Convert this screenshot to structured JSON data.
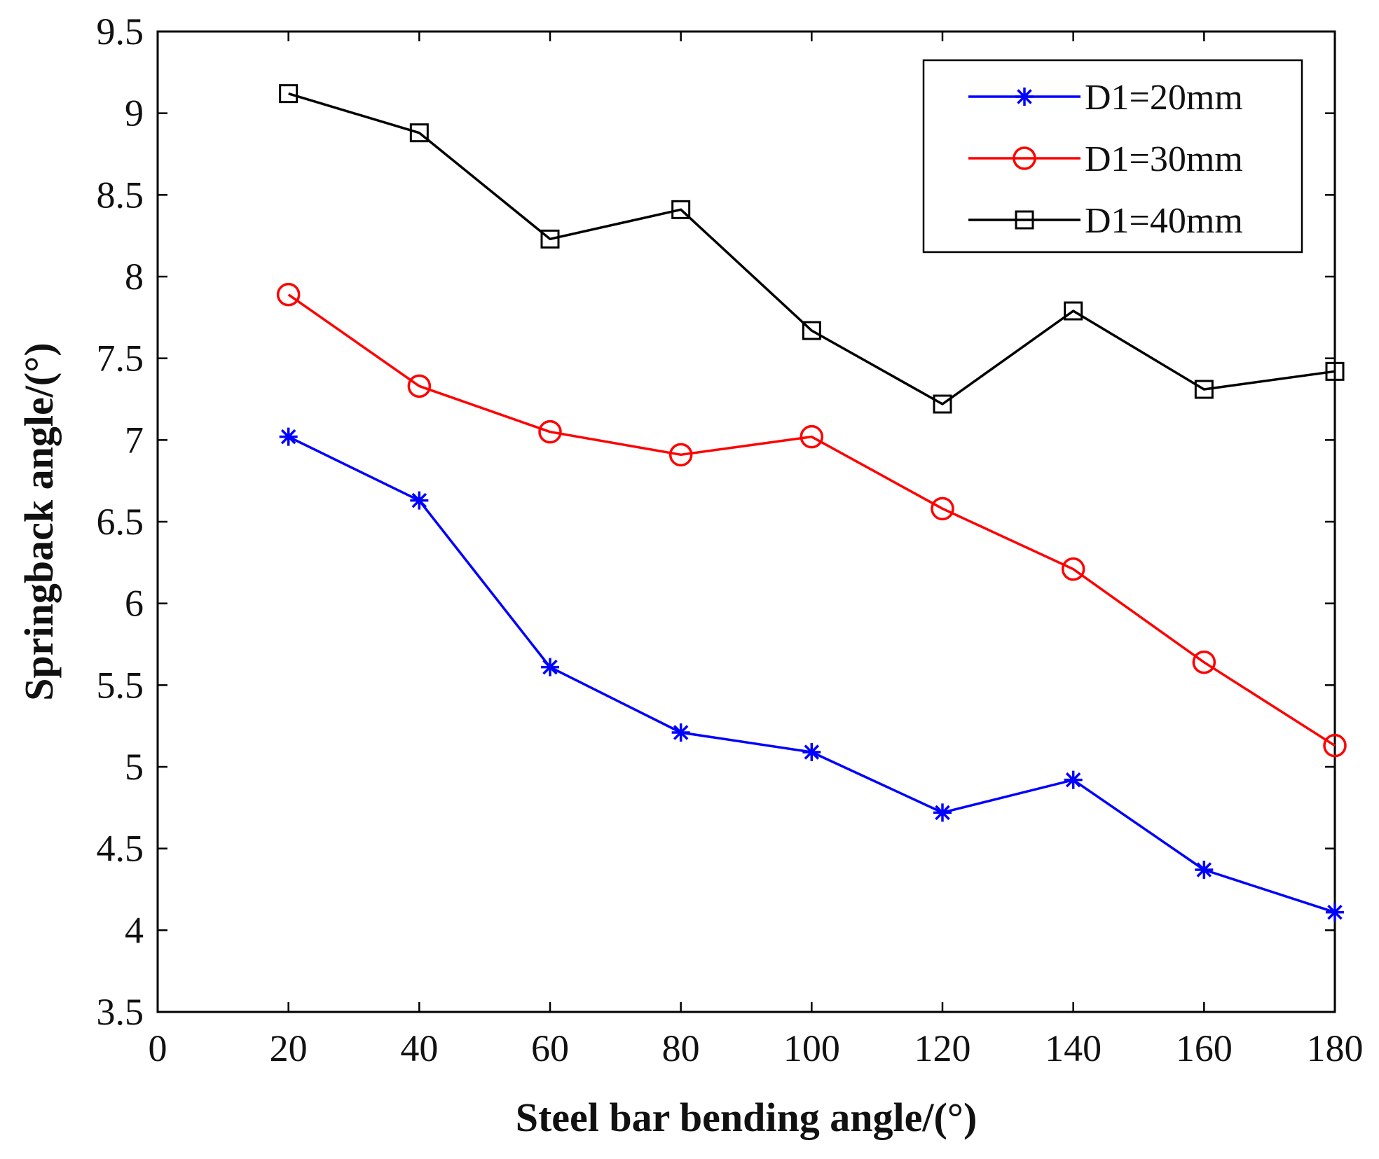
{
  "chart_data": {
    "type": "line",
    "title": "",
    "xlabel": "Steel bar bending angle/(°)",
    "ylabel": "Springback angle/(°)",
    "xlim": [
      0,
      180
    ],
    "ylim": [
      3.5,
      9.5
    ],
    "xticks": [
      "0",
      "20",
      "40",
      "60",
      "80",
      "100",
      "120",
      "140",
      "160",
      "180"
    ],
    "yticks": [
      "3.5",
      "4",
      "4.5",
      "5",
      "5.5",
      "6",
      "6.5",
      "7",
      "7.5",
      "8",
      "8.5",
      "9",
      "9.5"
    ],
    "grid": false,
    "legend_position": "top-right",
    "x": [
      20,
      40,
      60,
      80,
      100,
      120,
      140,
      160,
      180
    ],
    "series": [
      {
        "name": "D1=20mm",
        "color": "#0000ff",
        "marker": "asterisk",
        "values": [
          7.02,
          6.63,
          5.61,
          5.21,
          5.09,
          4.72,
          4.92,
          4.37,
          4.11
        ]
      },
      {
        "name": "D1=30mm",
        "color": "#ff0000",
        "marker": "circle",
        "values": [
          7.89,
          7.33,
          7.05,
          6.91,
          7.02,
          6.58,
          6.21,
          5.64,
          5.13
        ]
      },
      {
        "name": "D1=40mm",
        "color": "#000000",
        "marker": "square",
        "values": [
          9.12,
          8.88,
          8.23,
          8.41,
          7.67,
          7.22,
          7.79,
          7.31,
          7.42
        ]
      }
    ]
  }
}
